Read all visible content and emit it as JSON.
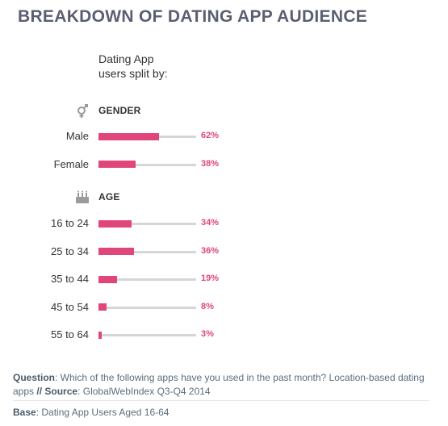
{
  "header": {
    "title": "BREAKDOWN OF DATING APP AUDIENCE",
    "subtitle_line1": "Dating App",
    "subtitle_line2": "users split by:"
  },
  "colors": {
    "bar": "#e0457b",
    "track": "#d6d6d6",
    "title": "#5b5e70",
    "icon": "#9b9b9b"
  },
  "chart_data": {
    "type": "bar",
    "orientation": "horizontal",
    "ylim": [
      0,
      100
    ],
    "groups": [
      {
        "name": "GENDER",
        "icon": "gender-icon",
        "categories": [
          "Male",
          "Female"
        ],
        "values": [
          62,
          38
        ],
        "value_labels": [
          "62%",
          "38%"
        ]
      },
      {
        "name": "AGE",
        "icon": "birthday-cake-icon",
        "categories": [
          "16 to 24",
          "25 to 34",
          "35 to 44",
          "45 to 54",
          "55 to 64"
        ],
        "values": [
          34,
          36,
          19,
          8,
          3
        ],
        "value_labels": [
          "34%",
          "36%",
          "19%",
          "8%",
          "3%"
        ]
      }
    ]
  },
  "footer": {
    "question_label": "Question",
    "question_text": ": Which of the following apps have you used in the past month? Location-based dating apps ",
    "separator": "//",
    "source_label": "Source",
    "source_text": ": GlobalWebIndex Q3-Q4 2014",
    "base_label": "Base",
    "base_text": ": Dating App Users Aged 16-64"
  }
}
